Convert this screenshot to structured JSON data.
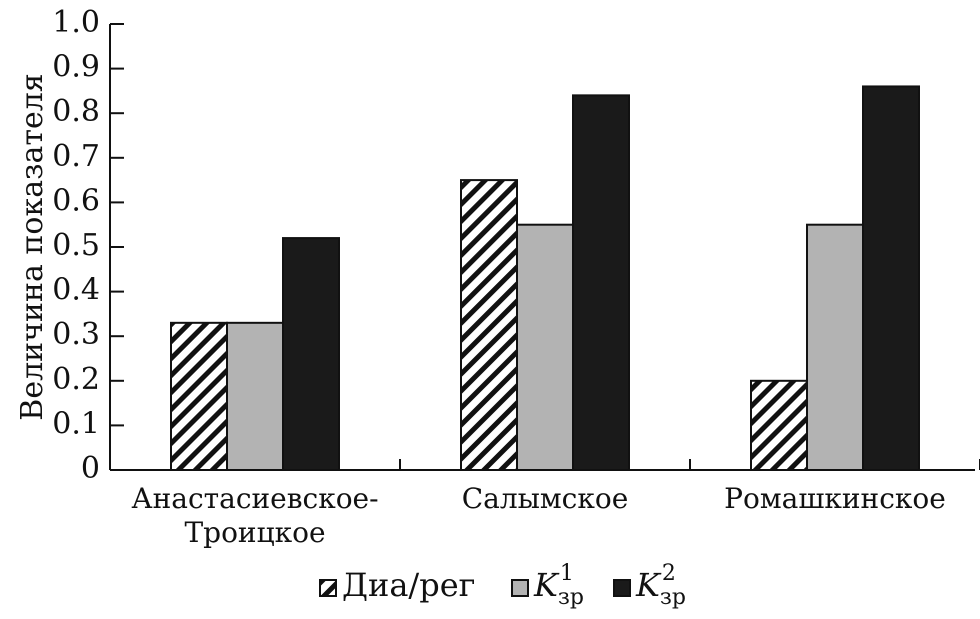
{
  "chart_data": {
    "type": "bar",
    "title": "",
    "xlabel": "",
    "ylabel": "Величина показателя",
    "ylim": [
      0,
      1.0
    ],
    "yticks": [
      "0",
      "0.1",
      "0.2",
      "0.3",
      "0.4",
      "0.5",
      "0.6",
      "0.7",
      "0.8",
      "0.9",
      "1.0"
    ],
    "grid": false,
    "legend_position": "bottom",
    "categories": [
      [
        "Анастасиевское-",
        "Троицкое"
      ],
      [
        "Салымское"
      ],
      [
        "Ромашкинское"
      ]
    ],
    "series": [
      {
        "name": "Диа/рег",
        "base": "",
        "sub": "",
        "sup": "",
        "pattern": "hatch",
        "color": "#ffffff",
        "values": [
          0.33,
          0.65,
          0.2
        ]
      },
      {
        "name": "",
        "base": "K",
        "sub": "зр",
        "sup": "1",
        "pattern": "solid",
        "color": "#b3b3b3",
        "values": [
          0.33,
          0.55,
          0.55
        ]
      },
      {
        "name": "",
        "base": "K",
        "sub": "зр",
        "sup": "2",
        "pattern": "solid",
        "color": "#1a1a1a",
        "values": [
          0.52,
          0.84,
          0.86
        ]
      }
    ]
  }
}
